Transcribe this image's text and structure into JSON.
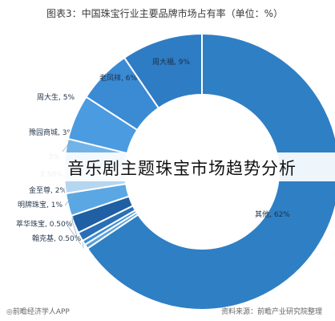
{
  "headline": "音乐剧主题珠宝市场趋势分析",
  "footer": {
    "left": "◎前瞻经济学人APP",
    "right": "资料来源：前瞻产业研究院整理"
  },
  "chart_data": {
    "type": "pie",
    "donut": true,
    "title": "图表3：中国珠宝行业主要品牌市场占有率（单位：%）",
    "slices": [
      {
        "label": "其他",
        "value": 62,
        "display": "其他, 62%",
        "color": "#2f7fc4"
      },
      {
        "label": "翰克基",
        "value": 0.5,
        "display": "翰克基, 0.50%",
        "color": "#5ea3db"
      },
      {
        "label": "萃华珠宝",
        "value": 0.5,
        "display": "萃华珠宝, 0.50%",
        "color": "#3b8ed3"
      },
      {
        "label": "明牌珠宝",
        "value": 1,
        "display": "明牌珠宝, 1%",
        "color": "#2a6fb5"
      },
      {
        "label": "金至尊",
        "value": 2,
        "display": "金至尊, 2%",
        "color": "#1f5fa3"
      },
      {
        "label": "",
        "value": 2.5,
        "display": "2.50%",
        "color": "#5aa7e3"
      },
      {
        "label": "",
        "value": 3,
        "display": "3%",
        "color": "#b6d6f0"
      },
      {
        "label": "豫园商城",
        "value": 3,
        "display": "豫园商城, 3%",
        "color": "#71b3e6"
      },
      {
        "label": "周大生",
        "value": 5,
        "display": "周大生, 5%",
        "color": "#4b9be0"
      },
      {
        "label": "老凤祥",
        "value": 6,
        "display": "老凤祥, 6%",
        "color": "#3a8ad4"
      },
      {
        "label": "周大福",
        "value": 9,
        "display": "周大福, 9%",
        "color": "#2e7cc4"
      }
    ]
  }
}
